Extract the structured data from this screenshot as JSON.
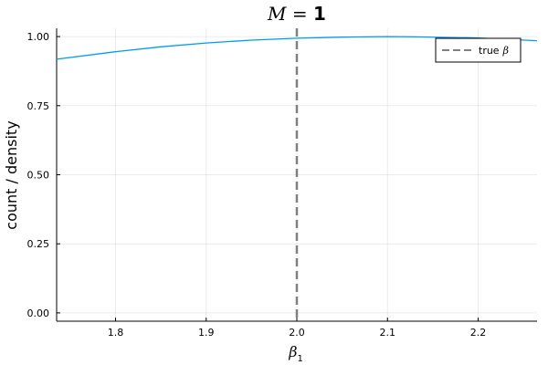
{
  "chart_data": {
    "type": "line",
    "title": {
      "symbol": "M",
      "eq": " = ",
      "value": "1"
    },
    "xlabel": {
      "symbol": "β",
      "subscript": "1"
    },
    "ylabel": "count / density",
    "xlim": [
      1.735,
      2.265
    ],
    "ylim": [
      -0.03,
      1.03
    ],
    "xticks": [
      1.8,
      1.9,
      2.0,
      2.1,
      2.2
    ],
    "xtick_labels": [
      "1.8",
      "1.9",
      "2.0",
      "2.1",
      "2.2"
    ],
    "yticks": [
      0.0,
      0.25,
      0.5,
      0.75,
      1.0
    ],
    "ytick_labels": [
      "0.00",
      "0.25",
      "0.50",
      "0.75",
      "1.00"
    ],
    "grid": true,
    "legend_position": "top-right",
    "series": [
      {
        "kind": "curve",
        "color": "#009af9",
        "x": [
          1.735,
          1.8,
          1.85,
          1.9,
          1.95,
          2.0,
          2.05,
          2.1,
          2.13,
          2.2,
          2.265
        ],
        "y": [
          0.918,
          0.945,
          0.963,
          0.977,
          0.987,
          0.994,
          0.998,
          1.0,
          0.999,
          0.995,
          0.985
        ]
      },
      {
        "kind": "vline",
        "name": "true β",
        "name_text": "true",
        "name_symbol": "β",
        "color": "#808080",
        "x": 2.0
      }
    ]
  }
}
